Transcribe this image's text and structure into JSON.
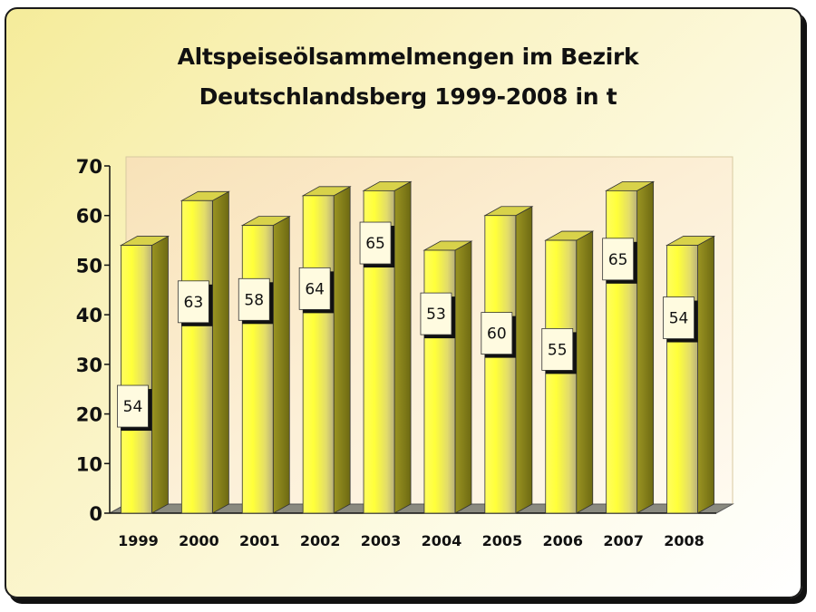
{
  "title_line1": "Altspeiseölsammelmengen im Bezirk",
  "title_line2": "Deutschlandsberg 1999-2008 in t",
  "chart_data": {
    "type": "bar",
    "title": "Altspeiseölsammelmengen im Bezirk Deutschlandsberg 1999-2008 in t",
    "xlabel": "",
    "ylabel": "",
    "categories": [
      "1999",
      "2000",
      "2001",
      "2002",
      "2003",
      "2004",
      "2005",
      "2006",
      "2007",
      "2008"
    ],
    "values": [
      54,
      63,
      58,
      64,
      65,
      53,
      60,
      55,
      65,
      54
    ],
    "ylim": [
      0,
      70
    ],
    "yticks": [
      0,
      10,
      20,
      30,
      40,
      50,
      60,
      70
    ],
    "grid": false,
    "legend": "none",
    "three_d": true,
    "data_labels": true,
    "colors": {
      "bar_light": "#ffff4a",
      "bar_mid": "#d8d24a",
      "bar_dark": "#8c8820",
      "plot_back": "#fbe3b8",
      "label_box": "#fffbe0"
    }
  }
}
